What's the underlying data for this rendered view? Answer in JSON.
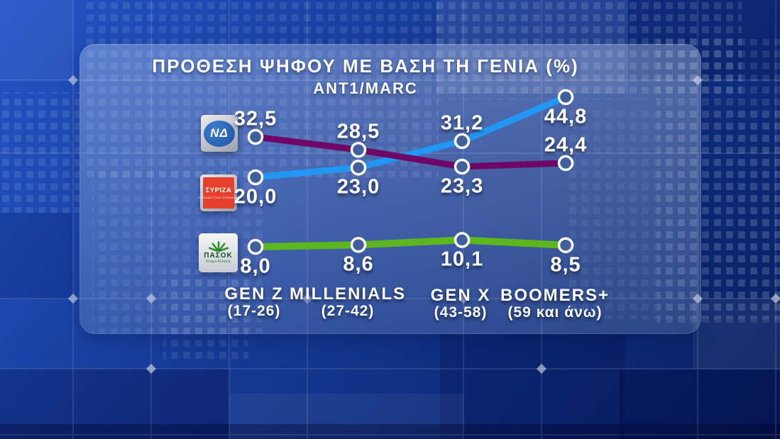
{
  "header": {
    "title": "ΠΡΟΘΕΣΗ ΨΗΦΟΥ ΜΕ ΒΑΣΗ ΤΗ ΓΕΝΙΑ (%)",
    "source": "ANT1/MARC"
  },
  "chart_data": {
    "type": "line",
    "title": "ΠΡΟΘΕΣΗ ΨΗΦΟΥ ΜΕ ΒΑΣΗ ΤΗ ΓΕΝΙΑ (%)",
    "subtitle": "ANT1/MARC",
    "categories": [
      "GEN Z",
      "MILLENIALS",
      "GEN X",
      "BOOMERS+"
    ],
    "category_ranges": [
      "(17-26)",
      "(27-42)",
      "(43-58)",
      "(59 και άνω)"
    ],
    "series": [
      {
        "name": "ΝΔ",
        "color": "#2196f3",
        "values": [
          20.0,
          23.0,
          31.2,
          44.8
        ]
      },
      {
        "name": "ΣΥΡΙΖΑ",
        "color": "#6e0765",
        "values": [
          32.5,
          28.5,
          23.3,
          24.4
        ]
      },
      {
        "name": "ΠΑΣΟΚ",
        "color": "#5cb71e",
        "values": [
          8.0,
          8.6,
          10.1,
          8.5
        ]
      }
    ],
    "value_decimal_separator": ",",
    "legend_position": "left",
    "grid": false
  },
  "legend": {
    "items": [
      {
        "party": "ΝΔ",
        "logo_text": "ΝΔ"
      },
      {
        "party": "ΣΥΡΙΖΑ",
        "logo_text": "ΣΥΡΙΖΑ",
        "logo_subtext": "ΠΡΟΟΔΕΥΤΙΚΗ ΣΥΜΜΑΧΙΑ"
      },
      {
        "party": "ΠΑΣΟΚ",
        "logo_text": "ΠΑΣΟΚ",
        "logo_subtext": "Κίνημα Αλλαγής"
      }
    ]
  },
  "colors": {
    "nd_line": "#2196f3",
    "syriza_line": "#6e0765",
    "pasok_line": "#5cb71e",
    "marker_stroke": "#ffffff",
    "marker_fill": "#41609b",
    "background": "#10308c"
  }
}
